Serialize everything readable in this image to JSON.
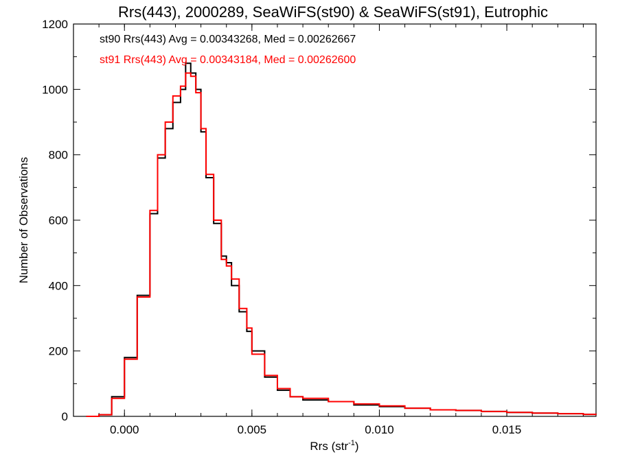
{
  "chart_data": {
    "type": "line",
    "title": "Rrs(443), 2000289, SeaWiFS(st90) & SeaWiFS(st91), Eutrophic",
    "xlabel": "Rrs (str",
    "xlabel_superscript": "-1",
    "xlabel_suffix": ")",
    "ylabel": "Number of Observations",
    "xlim": [
      -0.002,
      0.0185
    ],
    "ylim": [
      0,
      1200
    ],
    "x_ticks": [
      0.0,
      0.005,
      0.01,
      0.015
    ],
    "x_tick_labels": [
      "0.000",
      "0.005",
      "0.010",
      "0.015"
    ],
    "y_ticks": [
      0,
      200,
      400,
      600,
      800,
      1000,
      1200
    ],
    "y_tick_labels": [
      "0",
      "200",
      "400",
      "600",
      "800",
      "1000",
      "1200"
    ],
    "grid": false,
    "annotations": [
      {
        "text": "st90 Rrs(443) Avg = 0.00343268, Med = 0.00262667",
        "color": "#000000"
      },
      {
        "text": "st91 Rrs(443) Avg = 0.00343184, Med = 0.00262600",
        "color": "#ff0000"
      }
    ],
    "series": [
      {
        "color": "#000000",
        "x": [
          -0.0015,
          -0.001,
          -0.0005,
          0.0,
          0.0005,
          0.001,
          0.0013,
          0.0016,
          0.0019,
          0.0022,
          0.0024,
          0.0026,
          0.0028,
          0.003,
          0.0032,
          0.0035,
          0.0038,
          0.004,
          0.0042,
          0.0045,
          0.0048,
          0.005,
          0.0055,
          0.006,
          0.0065,
          0.007,
          0.008,
          0.009,
          0.01,
          0.011,
          0.012,
          0.013,
          0.014,
          0.015,
          0.016,
          0.017,
          0.018,
          0.0185
        ],
        "y": [
          0,
          5,
          60,
          180,
          370,
          620,
          790,
          880,
          960,
          1000,
          1080,
          1050,
          1000,
          870,
          730,
          590,
          490,
          470,
          400,
          320,
          260,
          200,
          120,
          80,
          60,
          50,
          45,
          35,
          30,
          25,
          20,
          18,
          15,
          12,
          10,
          8,
          6,
          5
        ]
      },
      {
        "color": "#ff0000",
        "x": [
          -0.0015,
          -0.001,
          -0.0005,
          0.0,
          0.0005,
          0.001,
          0.0013,
          0.0016,
          0.0019,
          0.0022,
          0.0024,
          0.0026,
          0.0028,
          0.003,
          0.0032,
          0.0035,
          0.0038,
          0.004,
          0.0042,
          0.0045,
          0.0048,
          0.005,
          0.0055,
          0.006,
          0.0065,
          0.007,
          0.008,
          0.009,
          0.01,
          0.011,
          0.012,
          0.013,
          0.014,
          0.015,
          0.016,
          0.017,
          0.018,
          0.0185
        ],
        "y": [
          0,
          5,
          55,
          175,
          365,
          630,
          800,
          900,
          980,
          1010,
          1050,
          1040,
          990,
          880,
          740,
          600,
          480,
          460,
          420,
          330,
          270,
          190,
          125,
          85,
          60,
          55,
          45,
          38,
          32,
          25,
          20,
          18,
          15,
          12,
          10,
          8,
          6,
          5
        ]
      }
    ]
  }
}
